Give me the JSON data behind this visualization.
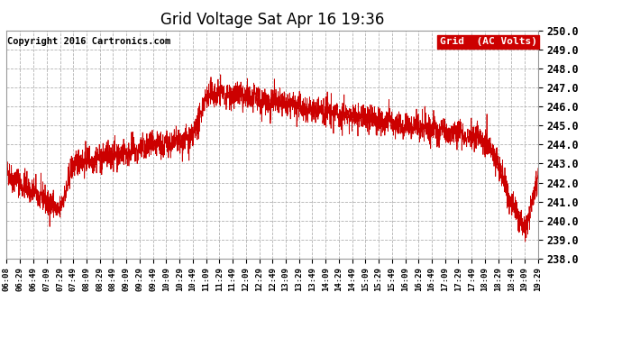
{
  "title": "Grid Voltage Sat Apr 16 19:36",
  "copyright": "Copyright 2016 Cartronics.com",
  "legend_label": "Grid  (AC Volts)",
  "line_color": "#cc0000",
  "legend_bg": "#cc0000",
  "legend_text_color": "#ffffff",
  "background_color": "#ffffff",
  "grid_color": "#aaaaaa",
  "ylim": [
    238.0,
    250.0
  ],
  "ytick_step": 1.0,
  "x_tick_labels": [
    "06:08",
    "06:29",
    "06:49",
    "07:09",
    "07:29",
    "07:49",
    "08:09",
    "08:29",
    "08:49",
    "09:09",
    "09:29",
    "09:49",
    "10:09",
    "10:29",
    "10:49",
    "11:09",
    "11:29",
    "11:49",
    "12:09",
    "12:29",
    "12:49",
    "13:09",
    "13:29",
    "13:49",
    "14:09",
    "14:29",
    "14:49",
    "15:09",
    "15:29",
    "15:49",
    "16:09",
    "16:29",
    "16:49",
    "17:09",
    "17:29",
    "17:49",
    "18:09",
    "18:29",
    "18:49",
    "19:09",
    "19:29"
  ],
  "seed": 42
}
